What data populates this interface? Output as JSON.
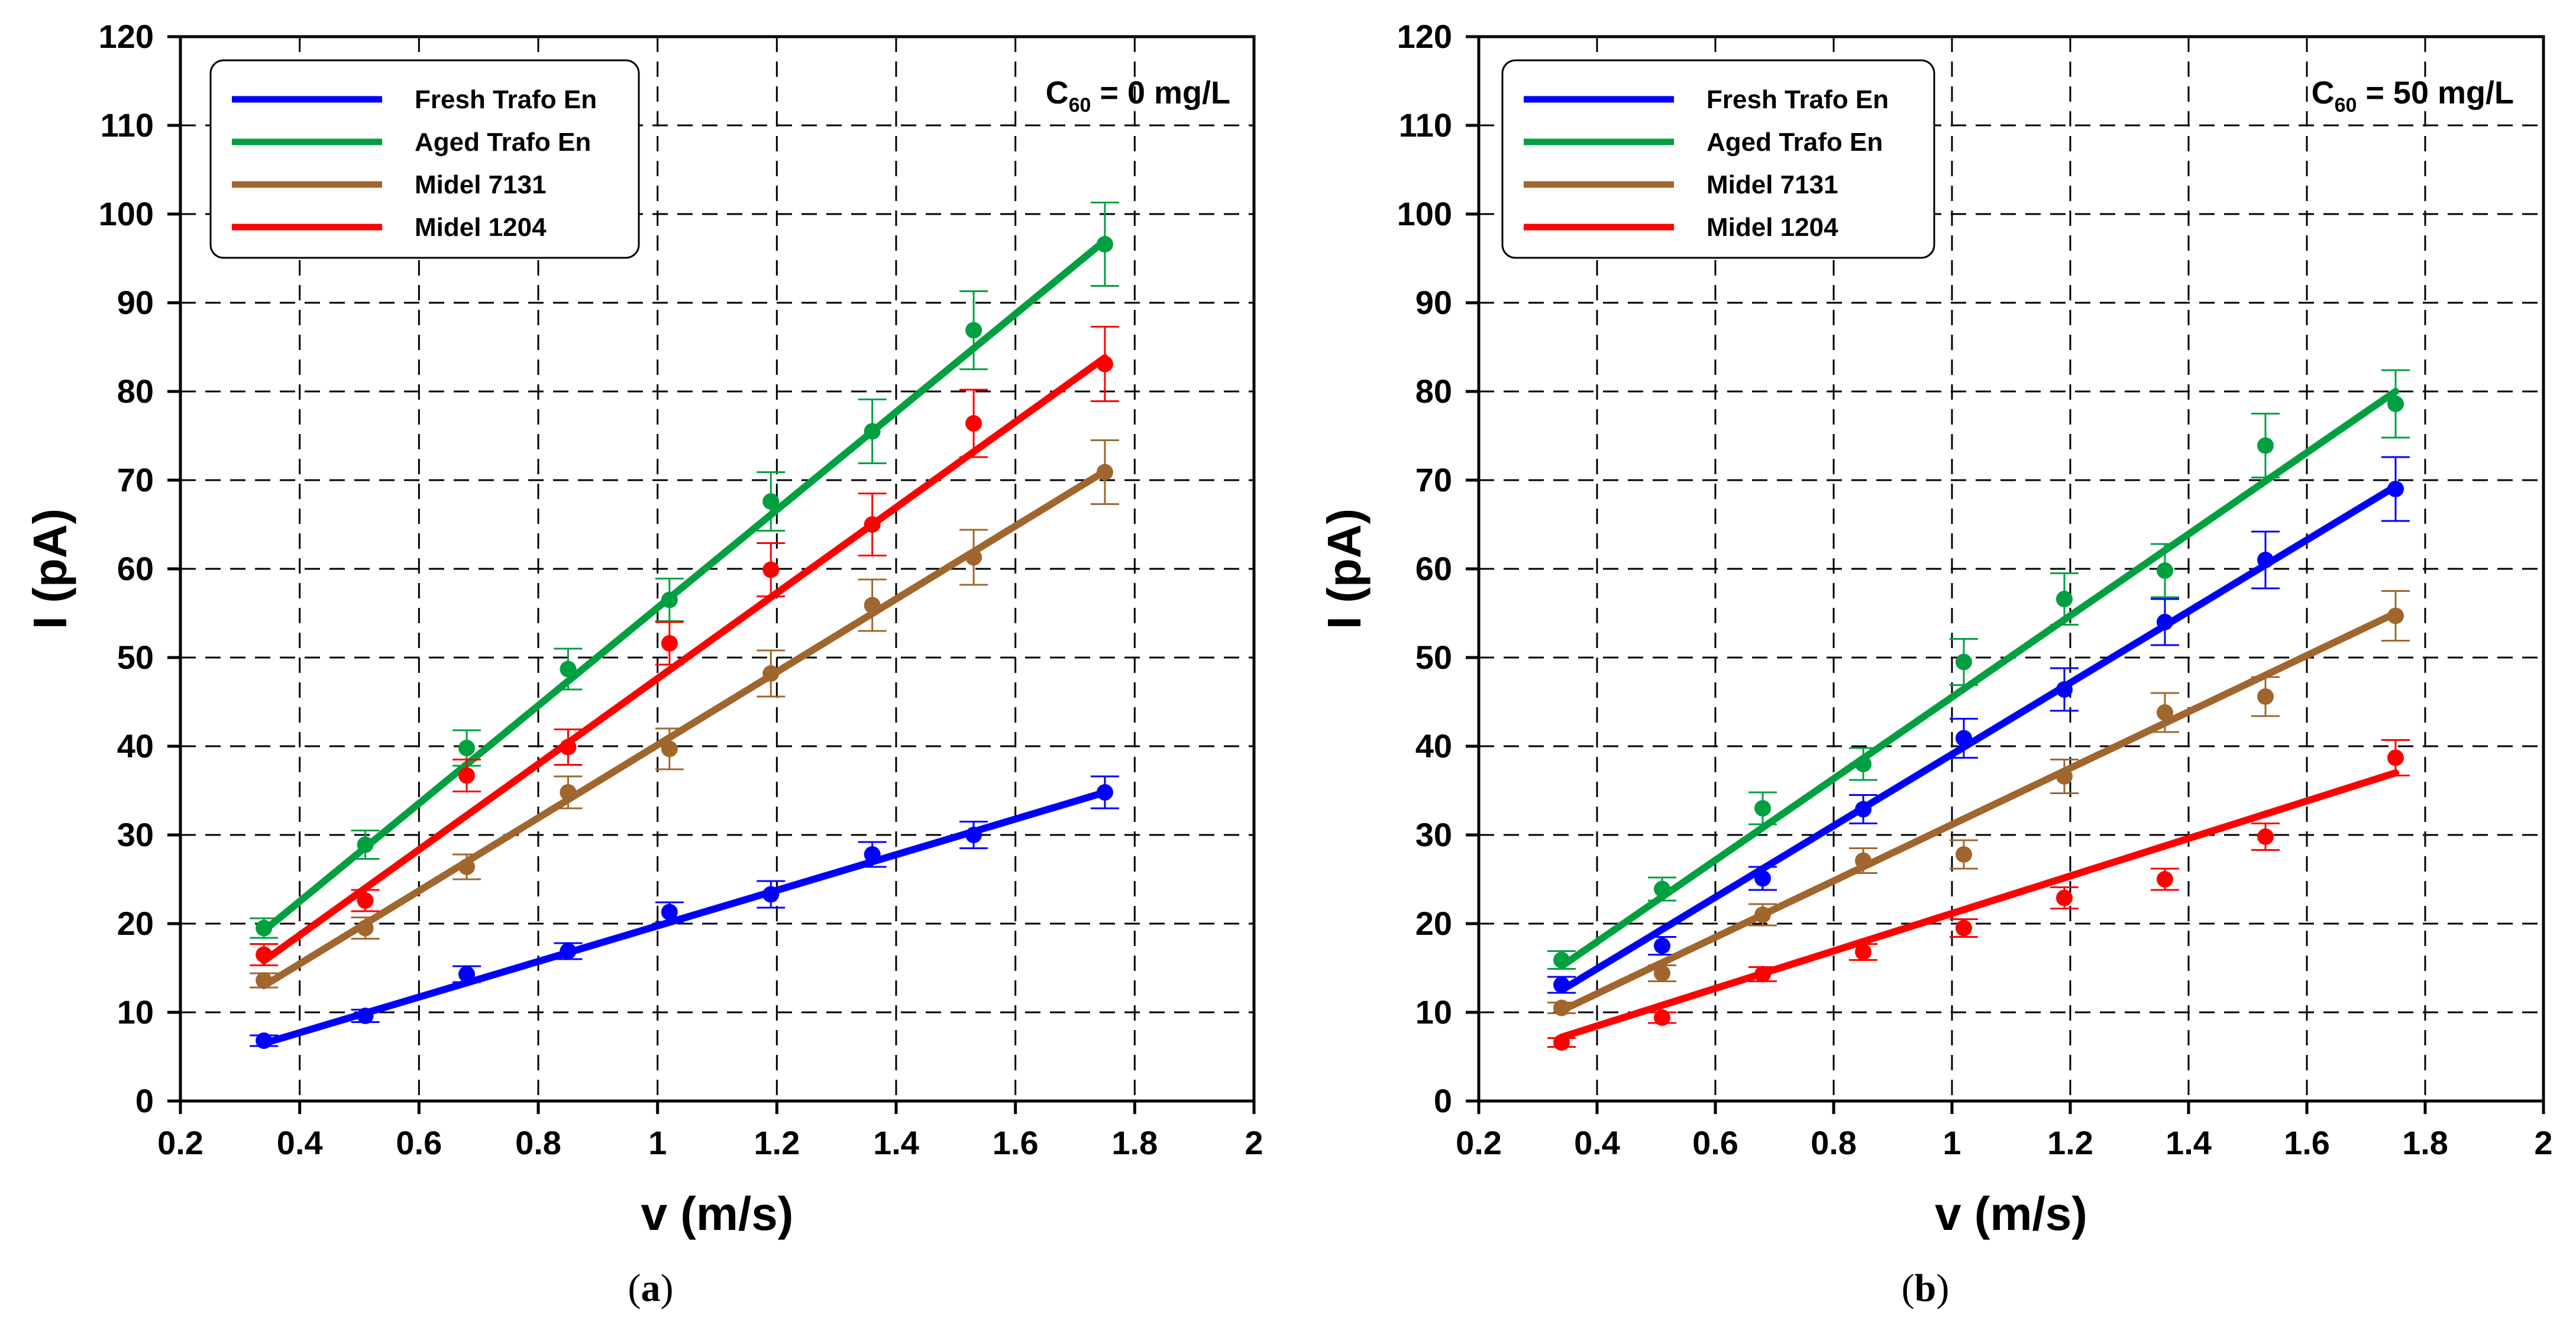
{
  "figure": {
    "panel_labels": [
      "a",
      "b"
    ]
  },
  "chart_data": [
    {
      "type": "line",
      "panel": "a",
      "xlabel": "v (m/s)",
      "ylabel": "I (pA)",
      "annotation": {
        "prefix": "C",
        "sub": "60",
        "suffix": " = 0 mg/L"
      },
      "xlim": [
        0.2,
        2
      ],
      "ylim": [
        0,
        120
      ],
      "xticks": [
        0.2,
        0.4,
        0.6,
        0.8,
        1,
        1.2,
        1.4,
        1.6,
        1.8,
        2
      ],
      "xtick_labels": [
        "0.2",
        "0.4",
        "0.6",
        "0.8",
        "1",
        "1.2",
        "1.4",
        "1.6",
        "1.8",
        "2"
      ],
      "yticks": [
        0,
        10,
        20,
        30,
        40,
        50,
        60,
        70,
        80,
        90,
        100,
        110,
        120
      ],
      "ytick_labels": [
        "0",
        "10",
        "20",
        "30",
        "40",
        "50",
        "60",
        "70",
        "80",
        "90",
        "100",
        "110",
        "120"
      ],
      "grid": true,
      "legend_position": "top-left",
      "x": [
        0.34,
        0.51,
        0.68,
        0.85,
        1.02,
        1.19,
        1.36,
        1.53,
        1.75
      ],
      "series": [
        {
          "name": "Fresh Trafo En",
          "color": "#0000ff",
          "values": [
            6.8,
            9.6,
            14.3,
            16.9,
            21.3,
            23.3,
            27.8,
            30.0,
            34.8
          ],
          "error": [
            0.6,
            0.7,
            0.9,
            0.9,
            1.1,
            1.5,
            1.4,
            1.5,
            1.8
          ],
          "fit": [
            6.5,
            34.8
          ]
        },
        {
          "name": "Aged Trafo En",
          "color": "#00a040",
          "values": [
            19.5,
            28.9,
            39.8,
            48.7,
            56.5,
            67.6,
            75.5,
            86.9,
            96.6
          ],
          "error": [
            1.1,
            1.6,
            2.0,
            2.3,
            2.4,
            3.3,
            3.6,
            4.4,
            4.7
          ],
          "fit": [
            19.2,
            97.0
          ]
        },
        {
          "name": "Midel 7131",
          "color": "#a0662e",
          "values": [
            13.6,
            19.5,
            26.4,
            34.8,
            39.7,
            48.2,
            55.9,
            61.3,
            70.9
          ],
          "error": [
            0.8,
            1.2,
            1.4,
            1.8,
            2.3,
            2.6,
            2.9,
            3.1,
            3.6
          ],
          "fit": [
            13.0,
            71.0
          ]
        },
        {
          "name": "Midel 1204",
          "color": "#ff0000",
          "values": [
            16.5,
            22.6,
            36.7,
            39.9,
            51.6,
            59.9,
            65.0,
            76.4,
            83.1
          ],
          "error": [
            1.2,
            1.2,
            1.8,
            2.0,
            2.4,
            3.0,
            3.5,
            3.8,
            4.2
          ],
          "fit": [
            15.8,
            83.8
          ]
        }
      ]
    },
    {
      "type": "line",
      "panel": "b",
      "xlabel": "v (m/s)",
      "ylabel": "I (pA)",
      "annotation": {
        "prefix": "C",
        "sub": "60",
        "suffix": " = 50 mg/L"
      },
      "xlim": [
        0.2,
        2
      ],
      "ylim": [
        0,
        120
      ],
      "xticks": [
        0.2,
        0.4,
        0.6,
        0.8,
        1,
        1.2,
        1.4,
        1.6,
        1.8,
        2
      ],
      "xtick_labels": [
        "0.2",
        "0.4",
        "0.6",
        "0.8",
        "1",
        "1.2",
        "1.4",
        "1.6",
        "1.8",
        "2"
      ],
      "yticks": [
        0,
        10,
        20,
        30,
        40,
        50,
        60,
        70,
        80,
        90,
        100,
        110,
        120
      ],
      "ytick_labels": [
        "0",
        "10",
        "20",
        "30",
        "40",
        "50",
        "60",
        "70",
        "80",
        "90",
        "100",
        "110",
        "120"
      ],
      "grid": true,
      "legend_position": "top-left",
      "x": [
        0.34,
        0.51,
        0.68,
        0.85,
        1.02,
        1.19,
        1.36,
        1.53,
        1.75
      ],
      "series": [
        {
          "name": "Fresh Trafo En",
          "color": "#0000ff",
          "values": [
            13.1,
            17.5,
            25.1,
            32.9,
            40.9,
            46.4,
            54.0,
            61.0,
            69.0
          ],
          "error": [
            0.9,
            1.0,
            1.3,
            1.6,
            2.2,
            2.4,
            2.6,
            3.2,
            3.6
          ],
          "fit": [
            12.5,
            69.3
          ]
        },
        {
          "name": "Aged Trafo En",
          "color": "#00a040",
          "values": [
            15.9,
            23.9,
            33.0,
            38.0,
            49.5,
            56.6,
            59.8,
            73.9,
            78.6
          ],
          "error": [
            1.0,
            1.3,
            1.8,
            1.8,
            2.6,
            2.9,
            3.0,
            3.6,
            3.8
          ],
          "fit": [
            15.2,
            80.0
          ]
        },
        {
          "name": "Midel 7131",
          "color": "#a0662e",
          "values": [
            10.5,
            14.4,
            21.0,
            27.1,
            27.8,
            36.6,
            43.8,
            45.6,
            54.7
          ],
          "error": [
            0.6,
            0.9,
            1.2,
            1.4,
            1.6,
            1.9,
            2.2,
            2.2,
            2.8
          ],
          "fit": [
            10.2,
            55.0
          ]
        },
        {
          "name": "Midel 1204",
          "color": "#ff0000",
          "values": [
            6.6,
            9.4,
            14.3,
            16.8,
            19.5,
            22.9,
            25.0,
            29.8,
            38.7
          ],
          "error": [
            0.5,
            0.6,
            0.8,
            0.9,
            1.0,
            1.2,
            1.2,
            1.5,
            2.0
          ],
          "fit": [
            7.2,
            37.0
          ]
        }
      ]
    }
  ]
}
